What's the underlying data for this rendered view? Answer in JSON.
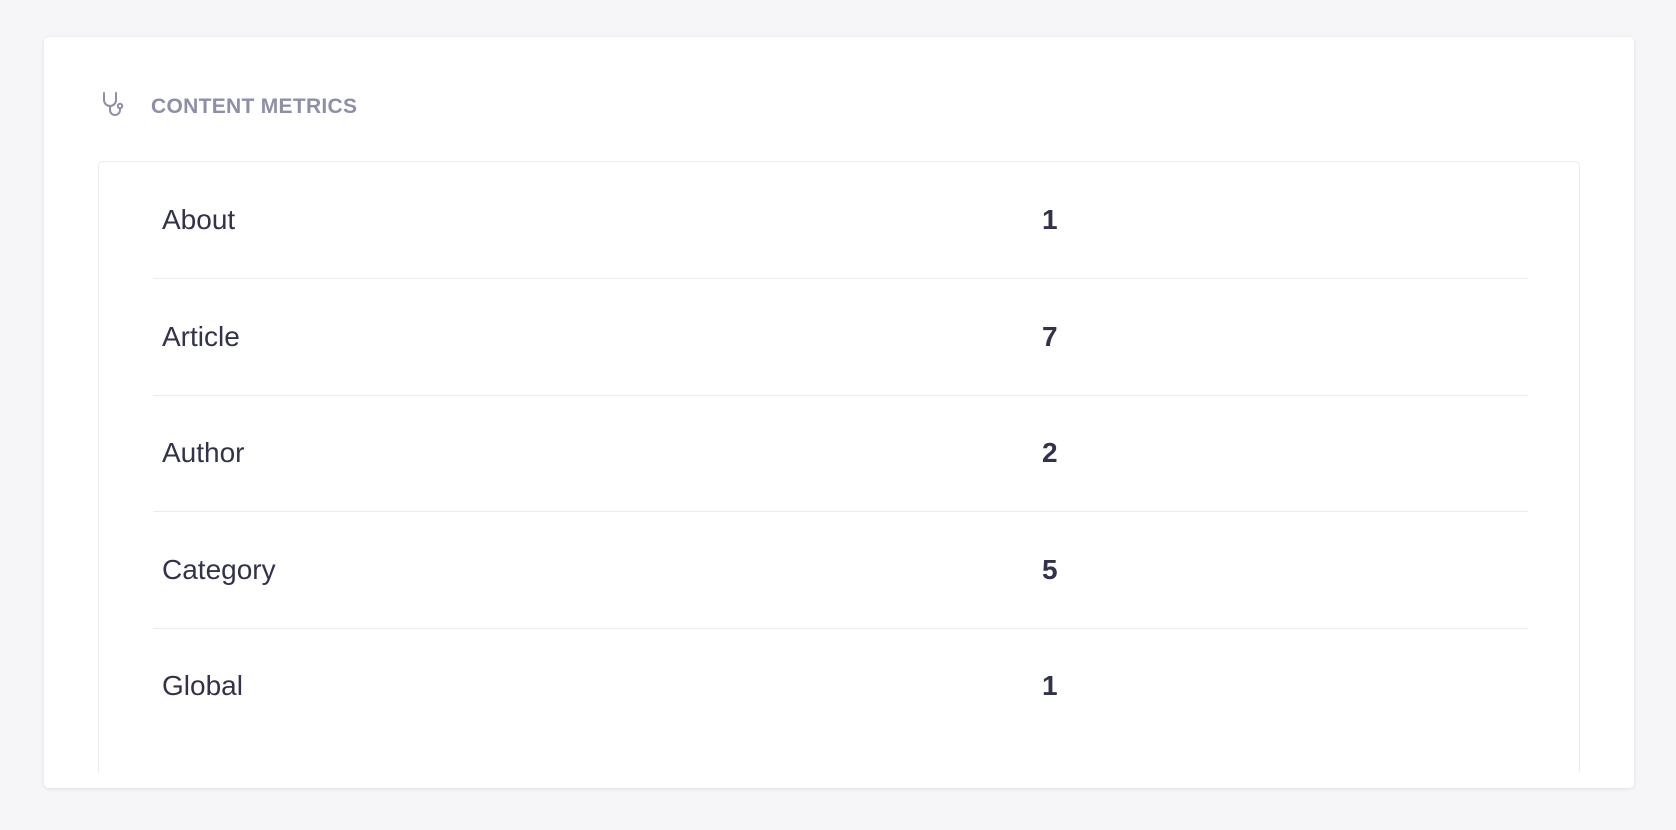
{
  "section": {
    "title": "Content Metrics",
    "icon": "stethoscope-icon"
  },
  "metrics": [
    {
      "label": "About",
      "value": "1"
    },
    {
      "label": "Article",
      "value": "7"
    },
    {
      "label": "Author",
      "value": "2"
    },
    {
      "label": "Category",
      "value": "5"
    },
    {
      "label": "Global",
      "value": "1"
    }
  ]
}
